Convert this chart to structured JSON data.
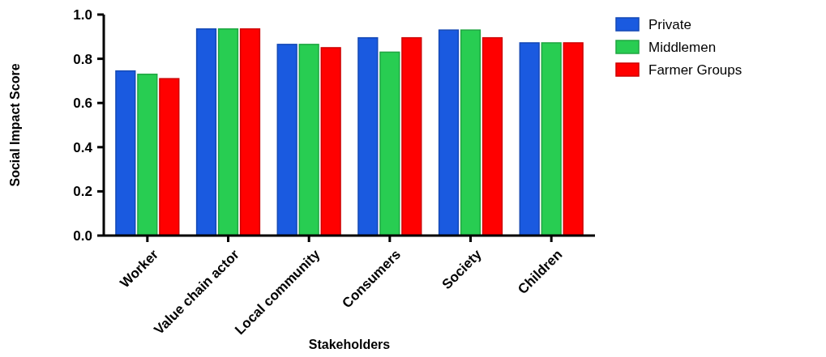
{
  "chart_data": {
    "type": "bar",
    "xlabel": "Stakeholders",
    "ylabel": "Social Impact Score",
    "categories": [
      "Worker",
      "Value chain actor",
      "Local community",
      "Consumers",
      "Society",
      "Children"
    ],
    "series": [
      {
        "name": "Private",
        "color": "#1a5ae0",
        "values": [
          0.745,
          0.935,
          0.865,
          0.895,
          0.93,
          0.872
        ]
      },
      {
        "name": "Middlemen",
        "color": "#28cd52",
        "values": [
          0.73,
          0.935,
          0.865,
          0.83,
          0.93,
          0.872
        ]
      },
      {
        "name": "Farmer Groups",
        "color": "#ff0000",
        "values": [
          0.71,
          0.935,
          0.85,
          0.895,
          0.895,
          0.872
        ]
      }
    ],
    "ylim": [
      0,
      1
    ],
    "yticks": [
      {
        "value": 0,
        "label": "0.0"
      },
      {
        "value": 0.2,
        "label": "0.2"
      },
      {
        "value": 0.4,
        "label": "0.4"
      },
      {
        "value": 0.6,
        "label": "0.6"
      },
      {
        "value": 0.8,
        "label": "0.8"
      },
      {
        "value": 1,
        "label": "1.0"
      }
    ],
    "grid": false,
    "legend": "top right"
  }
}
